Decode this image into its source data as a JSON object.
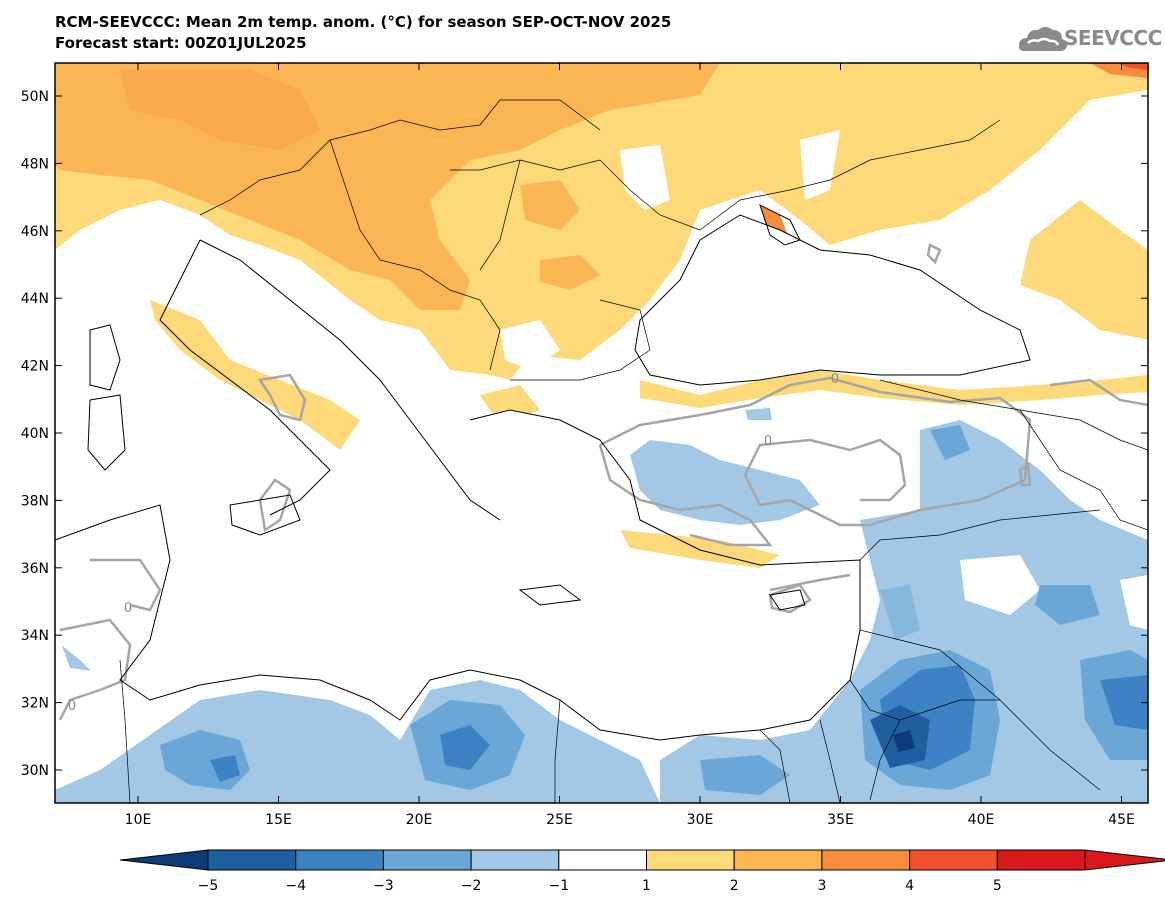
{
  "title": {
    "line1": "RCM-SEEVCCC: Mean 2m temp. anom. (°C) for season SEP-OCT-NOV 2025",
    "line2": "Forecast start: 00Z01JUL2025"
  },
  "logo": {
    "text": "SEEVCCC",
    "icon": "cloud-icon"
  },
  "axes": {
    "lon_labels": [
      "10E",
      "15E",
      "20E",
      "25E",
      "30E",
      "35E",
      "40E",
      "45E"
    ],
    "lat_labels": [
      "50N",
      "48N",
      "46N",
      "44N",
      "42N",
      "40N",
      "38N",
      "36N",
      "34N",
      "32N",
      "30N"
    ]
  },
  "colorbar": {
    "labels": [
      "−5",
      "−4",
      "−3",
      "−2",
      "−1",
      "1",
      "2",
      "3",
      "4",
      "5"
    ],
    "colors": [
      "#1f5fa0",
      "#3d82c4",
      "#6aa6d6",
      "#a2c8e5",
      "#ffffff",
      "#fdd97a",
      "#fbb553",
      "#f88b3c",
      "#f0512c",
      "#d7191c"
    ],
    "under_color": "#0e3b78",
    "over_color": "#d7191c"
  },
  "contour_label": "0",
  "colors": {
    "sea": "#ffffff",
    "land_border": "#000000",
    "contour": "#a5a5a5"
  }
}
